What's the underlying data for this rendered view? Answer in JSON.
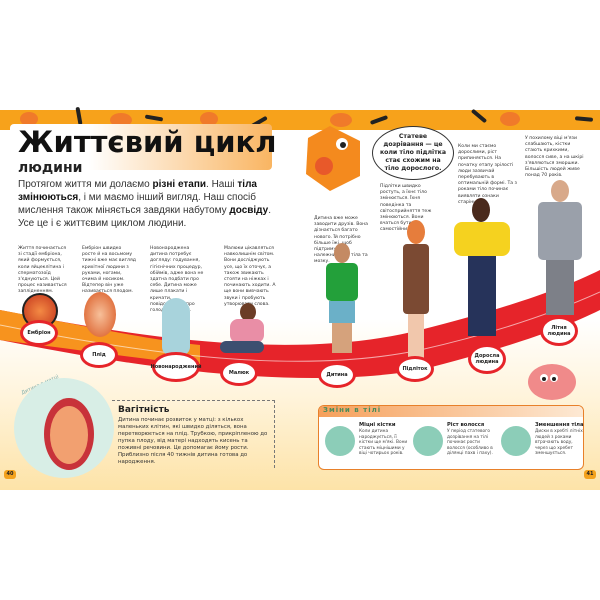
{
  "header": {
    "title": "Життєвий цикл",
    "subtitle": "людини",
    "intro_parts": [
      "Протягом життя ми долаємо ",
      "різні етапи",
      ". Наші ",
      "тіла змінюються",
      ", і ми маємо інший вигляд. Наш спосіб мислення також міняється завдяки набутому ",
      "досвіду",
      ". Усе це і є життєвим циклом людини."
    ]
  },
  "stages": [
    {
      "label": "Ембріон",
      "text": "Життя починається зі стадії ембріона, який формується, коли яйцеклітина і сперматозоїд з'єднуються. Цей процес називається заплідненням."
    },
    {
      "label": "Плід",
      "text": "Ембріон швидко росте й на восьмому тижні вже має вигляд крихітної людини з руками, ногами, очима й носиком. Відтепер він уже називається плодом."
    },
    {
      "label": "Новонароджений",
      "text": "Новонароджена дитина потребує догляду: годування, гігієнічних процедур, обіймів, адже вона не здатна подбати про себе. Дитина може лише плакати і кричати, повідомляючи про голод або втому."
    },
    {
      "label": "Малюк",
      "text": "Малюки цікавляться навколишнім світом. Вони досліджують усе, що їх оточує, а також звикають стояти на ніжках і починають ходити. А ще вони вивчають звуки і пробують утворювати слова."
    },
    {
      "label": "Дитина",
      "text": "Дитина вже може заводити друзів. Вона дізнається багато нового. Їй потрібно більше їжі, щоб підтримувати належний ріст тіла та мозку."
    },
    {
      "label": "Підліток",
      "text": "Підлітки швидко ростуть, а їхнє тіло змінюється. Їхня поведінка та світосприйняття теж змінюються. Вони вчаться бути самостійними."
    },
    {
      "label": "Доросла людина",
      "text": "Коли ми стаємо дорослими, ріст припиняється. На початку етапу зрілості люди зазвичай перебувають в оптимальній формі. Та з роками тіло починає виявляти ознаки старіння."
    },
    {
      "label": "Літня людина",
      "text": "У похилому віці м'язи слабшають, кістки стають крихкими, волосся сиве, а на шкірі з'являються зморшки. Більшість людей живе понад 70 років."
    }
  ],
  "speech_bubble": "Статеве дозрівання — це коли тіло підлітка стає схожим на тіло дорослого.",
  "pregnancy": {
    "image_label": "Дитина в матці",
    "title": "Вагітність",
    "text": "Дитина починає розвиток у матці: з кількох маленьких клітин, які швидко діляться, вона перетворюється на плід. Трубкою, прикріпленою до пупка плоду, від матері надходять кисень та поживні речовини. Це допомагає йому рости. Приблизно після 40 тижнів дитина готова до народження."
  },
  "body_changes": {
    "title": "Зміни в тілі",
    "items": [
      {
        "icon": "bone-icon",
        "title": "Міцні кістки",
        "text": "Коли дитина народжується, її кістки ще м'які. Вони стають міцнішими у віці чотирьох років."
      },
      {
        "icon": "hair-icon",
        "title": "Ріст волосся",
        "text": "У період статевого дозрівання на тілі починає рости волосся (особливо в ділянці пахв і паху)."
      },
      {
        "icon": "spine-icon",
        "title": "Зменшення тіла",
        "text": "Диски в хребті літніх людей з роками втрачають воду, через що хребет зменшується."
      }
    ]
  },
  "page_numbers": [
    "40",
    "41"
  ],
  "colors": {
    "accent_orange": "#f7a21b",
    "timeline_red": "#e6242a",
    "changes_green": "#8ccdb8"
  }
}
